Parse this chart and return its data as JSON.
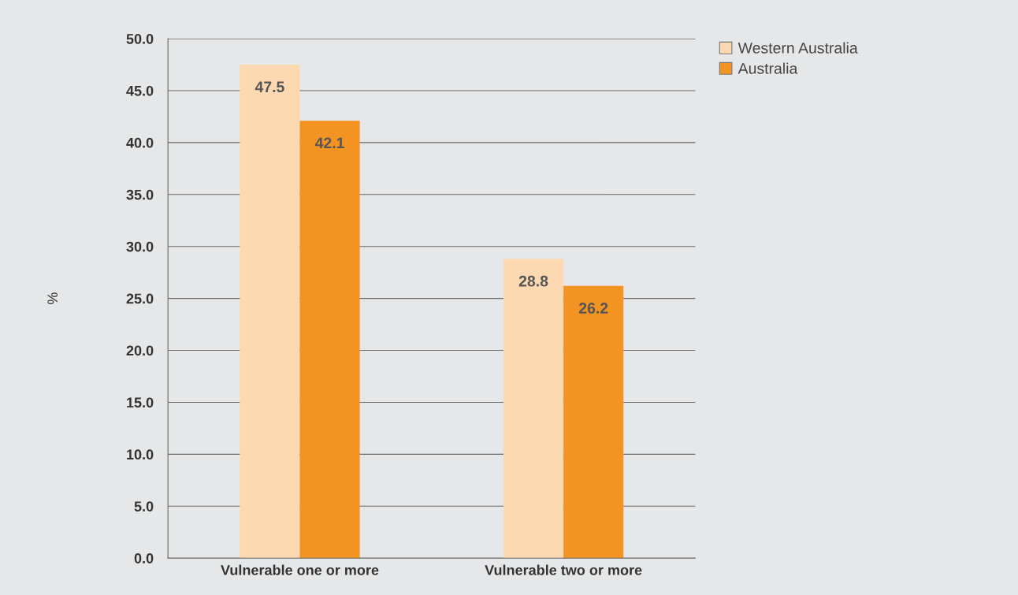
{
  "chart_data": {
    "type": "bar",
    "ylabel": "%",
    "categories": [
      "Vulnerable one or more",
      "Vulnerable two or more"
    ],
    "series": [
      {
        "name": "Western Australia",
        "color": "#fdd9b1",
        "values": [
          47.5,
          28.8
        ]
      },
      {
        "name": "Australia",
        "color": "#f39422",
        "values": [
          42.1,
          26.2
        ]
      }
    ],
    "ylim": [
      0,
      50
    ],
    "yticks": [
      {
        "value": 0,
        "label": "0.0"
      },
      {
        "value": 5,
        "label": "5.0"
      },
      {
        "value": 10,
        "label": "10.0"
      },
      {
        "value": 15,
        "label": "15.0"
      },
      {
        "value": 20,
        "label": "20.0"
      },
      {
        "value": 25,
        "label": "25.0"
      },
      {
        "value": 30,
        "label": "30.0"
      },
      {
        "value": 35,
        "label": "35.0"
      },
      {
        "value": 40,
        "label": "40.0"
      },
      {
        "value": 45,
        "label": "45.0"
      },
      {
        "value": 50,
        "label": "50.0"
      }
    ],
    "grid": "y",
    "legend": "top right",
    "data_labels": true
  }
}
